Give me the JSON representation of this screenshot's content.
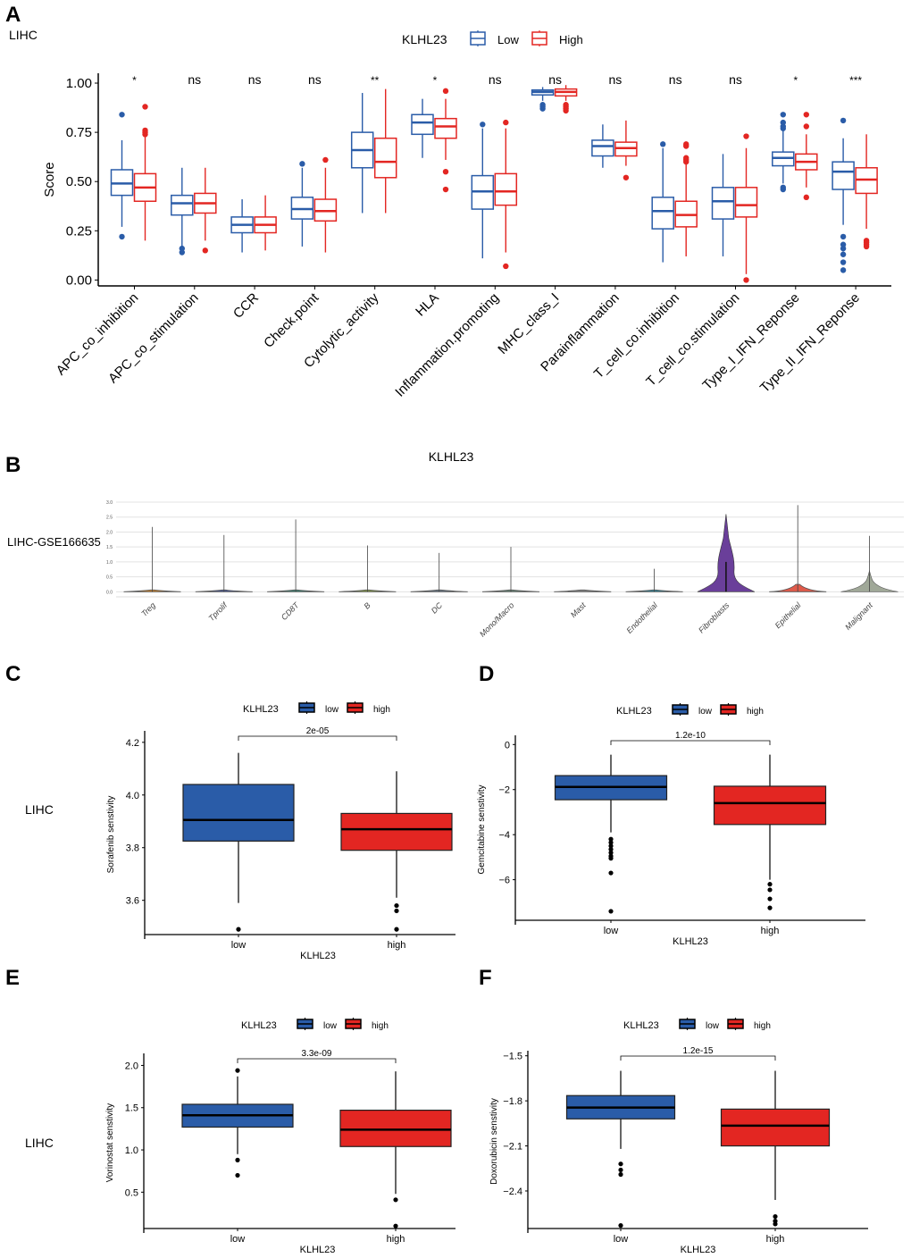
{
  "colors": {
    "low": "#2a5ca8",
    "high": "#e32622",
    "axis": "#000000",
    "grid": "#e3e3e3"
  },
  "chart_data": [
    {
      "id": "A",
      "type": "box",
      "panel_label": "A",
      "row_label": "LIHC",
      "title": "",
      "legend": {
        "title": "KLHL23",
        "entries": [
          "Low",
          "High"
        ],
        "placement": "top"
      },
      "xlabel": "",
      "ylabel": "Score",
      "ylim": [
        -0.03,
        1.05
      ],
      "yticks": [
        0.0,
        0.25,
        0.5,
        0.75,
        1.0
      ],
      "ytick_labels": [
        "0.00",
        "0.25",
        "0.50",
        "0.75",
        "1.00"
      ],
      "categories": [
        "APC_co_inhibition",
        "APC_co_stimulation",
        "CCR",
        "Check.point",
        "Cytolytic_activity",
        "HLA",
        "Inflammation.promoting",
        "MHC_class_I",
        "Parainflammation",
        "T_cell_co.inhibition",
        "T_cell_co.stimulation",
        "Type_I_IFN_Reponse",
        "Type_II_IFN_Reponse"
      ],
      "significance": [
        "*",
        "ns",
        "ns",
        "ns",
        "**",
        "*",
        "ns",
        "ns",
        "ns",
        "ns",
        "ns",
        "*",
        "***"
      ],
      "series": [
        {
          "name": "Low",
          "boxes": [
            {
              "min": 0.27,
              "q1": 0.43,
              "median": 0.49,
              "q3": 0.56,
              "max": 0.71,
              "outliers": [
                0.84,
                0.22
              ]
            },
            {
              "min": 0.17,
              "q1": 0.33,
              "median": 0.39,
              "q3": 0.43,
              "max": 0.57,
              "outliers": [
                0.16,
                0.14
              ]
            },
            {
              "min": 0.14,
              "q1": 0.24,
              "median": 0.28,
              "q3": 0.32,
              "max": 0.41,
              "outliers": []
            },
            {
              "min": 0.17,
              "q1": 0.31,
              "median": 0.36,
              "q3": 0.42,
              "max": 0.57,
              "outliers": [
                0.59
              ]
            },
            {
              "min": 0.34,
              "q1": 0.57,
              "median": 0.66,
              "q3": 0.75,
              "max": 0.95,
              "outliers": []
            },
            {
              "min": 0.62,
              "q1": 0.74,
              "median": 0.8,
              "q3": 0.84,
              "max": 0.92,
              "outliers": []
            },
            {
              "min": 0.11,
              "q1": 0.36,
              "median": 0.45,
              "q3": 0.53,
              "max": 0.77,
              "outliers": [
                0.79
              ]
            },
            {
              "min": 0.91,
              "q1": 0.94,
              "median": 0.955,
              "q3": 0.965,
              "max": 0.98,
              "outliers": [
                0.89,
                0.88,
                0.87
              ]
            },
            {
              "min": 0.57,
              "q1": 0.63,
              "median": 0.68,
              "q3": 0.71,
              "max": 0.79,
              "outliers": []
            },
            {
              "min": 0.09,
              "q1": 0.26,
              "median": 0.35,
              "q3": 0.42,
              "max": 0.67,
              "outliers": [
                0.69
              ]
            },
            {
              "min": 0.12,
              "q1": 0.31,
              "median": 0.4,
              "q3": 0.47,
              "max": 0.64,
              "outliers": []
            },
            {
              "min": 0.49,
              "q1": 0.58,
              "median": 0.62,
              "q3": 0.65,
              "max": 0.76,
              "outliers": [
                0.84,
                0.8,
                0.78,
                0.77,
                0.47,
                0.46
              ]
            },
            {
              "min": 0.28,
              "q1": 0.46,
              "median": 0.55,
              "q3": 0.6,
              "max": 0.72,
              "outliers": [
                0.81,
                0.22,
                0.18,
                0.16,
                0.13,
                0.09,
                0.05
              ]
            }
          ]
        },
        {
          "name": "High",
          "boxes": [
            {
              "min": 0.2,
              "q1": 0.4,
              "median": 0.47,
              "q3": 0.54,
              "max": 0.73,
              "outliers": [
                0.88,
                0.76,
                0.75,
                0.74
              ]
            },
            {
              "min": 0.2,
              "q1": 0.34,
              "median": 0.39,
              "q3": 0.44,
              "max": 0.57,
              "outliers": [
                0.15
              ]
            },
            {
              "min": 0.15,
              "q1": 0.24,
              "median": 0.28,
              "q3": 0.32,
              "max": 0.43,
              "outliers": []
            },
            {
              "min": 0.14,
              "q1": 0.3,
              "median": 0.35,
              "q3": 0.41,
              "max": 0.57,
              "outliers": [
                0.61
              ]
            },
            {
              "min": 0.34,
              "q1": 0.52,
              "median": 0.6,
              "q3": 0.72,
              "max": 0.97,
              "outliers": []
            },
            {
              "min": 0.61,
              "q1": 0.72,
              "median": 0.78,
              "q3": 0.82,
              "max": 0.92,
              "outliers": [
                0.96,
                0.55,
                0.46
              ]
            },
            {
              "min": 0.14,
              "q1": 0.38,
              "median": 0.45,
              "q3": 0.54,
              "max": 0.77,
              "outliers": [
                0.8,
                0.07
              ]
            },
            {
              "min": 0.91,
              "q1": 0.935,
              "median": 0.955,
              "q3": 0.97,
              "max": 0.99,
              "outliers": [
                0.89,
                0.88,
                0.87,
                0.86
              ]
            },
            {
              "min": 0.58,
              "q1": 0.63,
              "median": 0.67,
              "q3": 0.7,
              "max": 0.81,
              "outliers": [
                0.52
              ]
            },
            {
              "min": 0.12,
              "q1": 0.27,
              "median": 0.33,
              "q3": 0.4,
              "max": 0.6,
              "outliers": [
                0.69,
                0.68,
                0.62,
                0.61,
                0.6
              ]
            },
            {
              "min": 0.03,
              "q1": 0.32,
              "median": 0.38,
              "q3": 0.47,
              "max": 0.67,
              "outliers": [
                0.73,
                0.0
              ]
            },
            {
              "min": 0.47,
              "q1": 0.56,
              "median": 0.6,
              "q3": 0.64,
              "max": 0.74,
              "outliers": [
                0.84,
                0.78,
                0.42
              ]
            },
            {
              "min": 0.26,
              "q1": 0.44,
              "median": 0.51,
              "q3": 0.57,
              "max": 0.74,
              "outliers": [
                0.2,
                0.19,
                0.18,
                0.17
              ]
            }
          ]
        }
      ]
    },
    {
      "id": "B",
      "type": "violin",
      "panel_label": "B",
      "row_label": "LIHC-GSE166635",
      "title": "KLHL23",
      "xlabel": "",
      "ylabel": "",
      "ylim": [
        -0.05,
        3.0
      ],
      "yticks": [
        0.0,
        0.5,
        1.0,
        1.5,
        2.0,
        2.5,
        3.0
      ],
      "ytick_labels": [
        "0.0",
        "0.5",
        "1.0",
        "1.5",
        "2.0",
        "2.5",
        "3.0"
      ],
      "grid": true,
      "categories": [
        "Treg",
        "Tprolif",
        "CD8T",
        "B",
        "DC",
        "Mono/Macro",
        "Mast",
        "Endothelial",
        "Fibroblasts",
        "Epithelial",
        "Malignant"
      ],
      "max_values": [
        2.17,
        1.9,
        2.42,
        1.55,
        1.3,
        1.5,
        0.0,
        0.77,
        2.6,
        2.9,
        1.87
      ],
      "median_values": [
        0.0,
        0.0,
        0.0,
        0.0,
        0.0,
        0.0,
        0.0,
        0.0,
        1.0,
        0.0,
        0.1
      ],
      "colors": [
        "#d9892a",
        "#4a5a9a",
        "#3f8a7a",
        "#8aa04a",
        "#6a7a8a",
        "#6a8a7a",
        "#8a8a8a",
        "#2f8aa0",
        "#6a3f9a",
        "#e05a4a",
        "#a0a898"
      ]
    },
    {
      "id": "C",
      "type": "box",
      "panel_label": "C",
      "row_label": "LIHC",
      "legend": {
        "title": "KLHL23",
        "entries": [
          "low",
          "high"
        ],
        "placement": "top"
      },
      "xlabel": "KLHL23",
      "ylabel": "Sorafenib senstivity",
      "categories": [
        "low",
        "high"
      ],
      "ylim": [
        3.47,
        4.23
      ],
      "yticks": [
        3.6,
        3.8,
        4.0,
        4.2
      ],
      "ytick_labels": [
        "3.6",
        "3.8",
        "4.0",
        "4.2"
      ],
      "pvalue": "2e-05",
      "boxes": [
        {
          "min": 3.59,
          "q1": 3.825,
          "median": 3.905,
          "q3": 4.04,
          "max": 4.16,
          "outliers": [
            3.49
          ]
        },
        {
          "min": 3.61,
          "q1": 3.79,
          "median": 3.87,
          "q3": 3.93,
          "max": 4.09,
          "outliers": [
            3.58,
            3.56,
            3.49
          ]
        }
      ]
    },
    {
      "id": "D",
      "type": "box",
      "panel_label": "D",
      "row_label": "",
      "legend": {
        "title": "KLHL23",
        "entries": [
          "low",
          "high"
        ],
        "placement": "top"
      },
      "xlabel": "KLHL23",
      "ylabel": "Gemcitabine senstivity",
      "categories": [
        "low",
        "high"
      ],
      "ylim": [
        -7.8,
        0.25
      ],
      "yticks": [
        -6,
        -4,
        -2,
        0
      ],
      "ytick_labels": [
        "−6",
        "−4",
        "−2",
        "0"
      ],
      "pvalue": "1.2e-10",
      "boxes": [
        {
          "min": -3.9,
          "q1": -2.45,
          "median": -1.88,
          "q3": -1.38,
          "max": -0.45,
          "outliers": [
            -4.2,
            -4.35,
            -4.5,
            -4.65,
            -4.8,
            -4.95,
            -5.05,
            -5.7,
            -7.4
          ]
        },
        {
          "min": -6.0,
          "q1": -3.55,
          "median": -2.6,
          "q3": -1.85,
          "max": -0.45,
          "outliers": [
            -6.2,
            -6.45,
            -6.85,
            -7.25
          ]
        }
      ]
    },
    {
      "id": "E",
      "type": "box",
      "panel_label": "E",
      "row_label": "LIHC",
      "legend": {
        "title": "KLHL23",
        "entries": [
          "low",
          "high"
        ],
        "placement": "top"
      },
      "xlabel": "KLHL23",
      "ylabel": "Vorinostat senstivity",
      "categories": [
        "low",
        "high"
      ],
      "ylim": [
        0.07,
        2.1
      ],
      "yticks": [
        0.5,
        1.0,
        1.5,
        2.0
      ],
      "ytick_labels": [
        "0.5",
        "1.0",
        "1.5",
        "2.0"
      ],
      "pvalue": "3.3e-09",
      "boxes": [
        {
          "min": 0.95,
          "q1": 1.27,
          "median": 1.41,
          "q3": 1.54,
          "max": 1.87,
          "outliers": [
            1.94,
            0.88,
            0.7
          ]
        },
        {
          "min": 0.48,
          "q1": 1.04,
          "median": 1.24,
          "q3": 1.47,
          "max": 1.93,
          "outliers": [
            0.41,
            0.1
          ]
        }
      ]
    },
    {
      "id": "F",
      "type": "box",
      "panel_label": "F",
      "row_label": "",
      "legend": {
        "title": "KLHL23",
        "entries": [
          "low",
          "high"
        ],
        "placement": "top"
      },
      "xlabel": "KLHL23",
      "ylabel": "Doxorubicin senstivity",
      "categories": [
        "low",
        "high"
      ],
      "ylim": [
        -2.65,
        -1.49
      ],
      "yticks": [
        -2.4,
        -2.1,
        -1.8,
        -1.5
      ],
      "ytick_labels": [
        "−2.4",
        "−2.1",
        "−1.8",
        "−1.5"
      ],
      "pvalue": "1.2e-15",
      "boxes": [
        {
          "min": -2.12,
          "q1": -1.92,
          "median": -1.845,
          "q3": -1.765,
          "max": -1.6,
          "outliers": [
            -2.22,
            -2.26,
            -2.29,
            -2.63
          ]
        },
        {
          "min": -2.46,
          "q1": -2.1,
          "median": -1.965,
          "q3": -1.855,
          "max": -1.6,
          "outliers": [
            -2.57,
            -2.6,
            -2.62
          ]
        }
      ]
    }
  ]
}
